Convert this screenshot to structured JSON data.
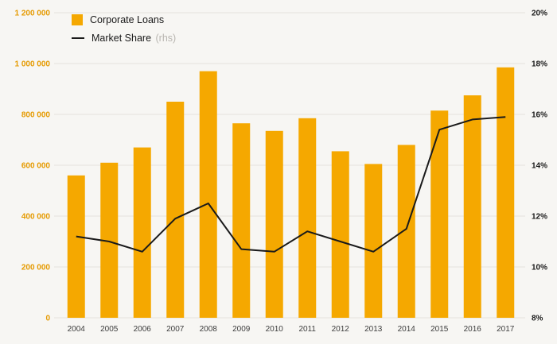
{
  "chart_data": {
    "type": "bar-line-combo",
    "title": "",
    "categories": [
      "2004",
      "2005",
      "2006",
      "2007",
      "2008",
      "2009",
      "2010",
      "2011",
      "2012",
      "2013",
      "2014",
      "2015",
      "2016",
      "2017"
    ],
    "series": [
      {
        "name": "Corporate Loans",
        "chart_type": "bar",
        "axis": "left",
        "values": [
          560000,
          610000,
          670000,
          850000,
          970000,
          765000,
          735000,
          785000,
          655000,
          605000,
          680000,
          815000,
          875000,
          985000
        ]
      },
      {
        "name": "Market Share",
        "rhs_note": "(rhs)",
        "chart_type": "line",
        "axis": "right",
        "values": [
          11.2,
          11.0,
          10.6,
          11.9,
          12.5,
          10.7,
          10.6,
          11.4,
          11.0,
          10.6,
          11.5,
          15.4,
          15.8,
          15.9
        ]
      }
    ],
    "left_axis": {
      "min": 0,
      "max": 1200000,
      "step": 200000,
      "tick_labels": [
        "0",
        "200 000",
        "400 000",
        "600 000",
        "800 000",
        "1 000 000",
        "1 200 000"
      ]
    },
    "right_axis": {
      "min": 8,
      "max": 20,
      "step": 2,
      "suffix": "%",
      "tick_labels": [
        "8%",
        "10%",
        "12%",
        "14%",
        "16%",
        "18%",
        "20%"
      ]
    },
    "colors": {
      "bar": "#F5A800",
      "line": "#1a1a1a",
      "left_axis_text": "#E59A00",
      "right_axis_text": "#1a1a1a",
      "x_axis_text": "#3d3d3d",
      "grid": "#e4e2dd",
      "background": "#f7f6f3"
    },
    "legend_position": "top-left",
    "grid": "horizontal"
  }
}
